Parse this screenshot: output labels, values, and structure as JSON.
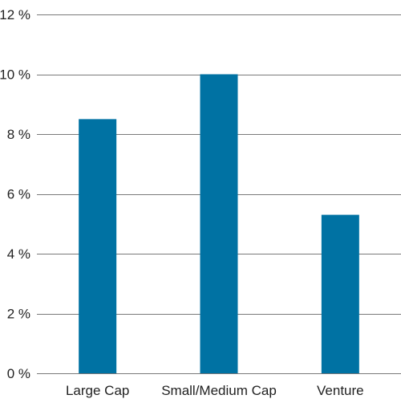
{
  "chart_data": {
    "type": "bar",
    "categories": [
      "Large Cap",
      "Small/Medium Cap",
      "Venture"
    ],
    "values": [
      8.5,
      10.0,
      5.3
    ],
    "ylim": [
      0,
      12
    ],
    "yticks": [
      0,
      2,
      4,
      6,
      8,
      10,
      12
    ],
    "ytick_labels": [
      "0 %",
      "2 %",
      "4 %",
      "6 %",
      "8 %",
      "10 %",
      "12 %"
    ],
    "grid": true,
    "legend": false,
    "colors": {
      "bar": "#0072a3",
      "grid": "#7a7a7a",
      "text": "#222222"
    }
  }
}
